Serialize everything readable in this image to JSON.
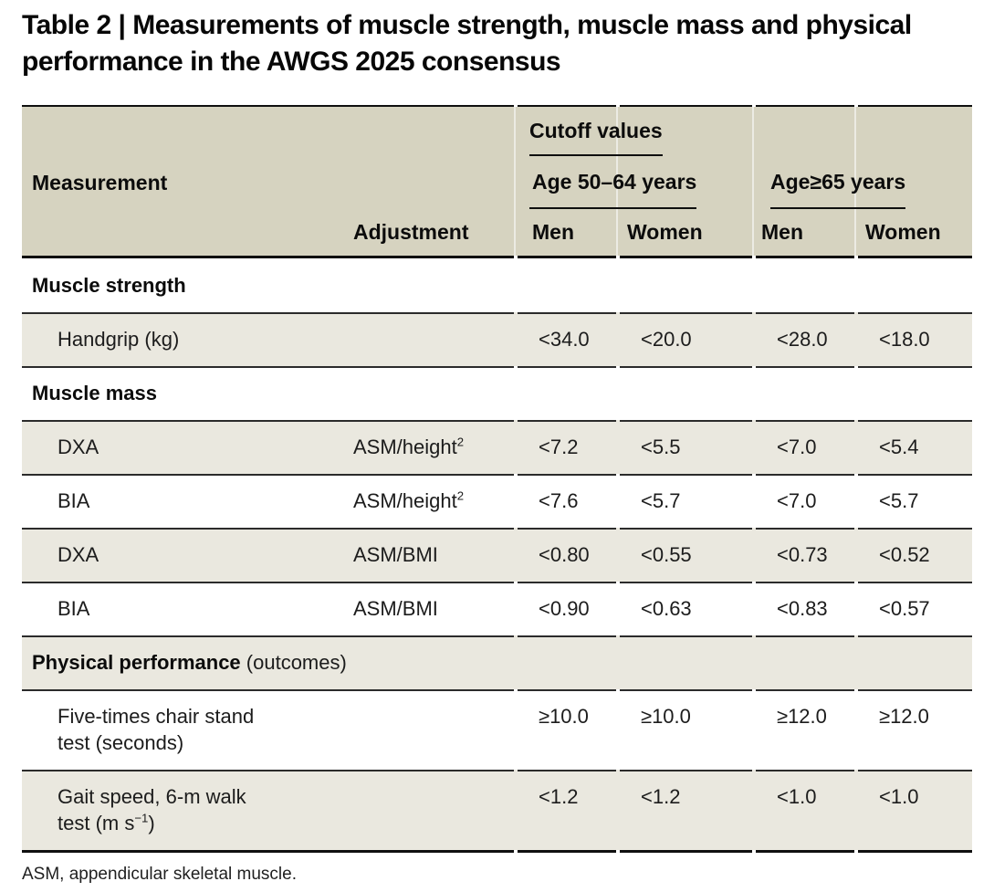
{
  "title": "Table 2 | Measurements of muscle strength, muscle mass and physical performance in the AWGS 2025 consensus",
  "colors": {
    "header_background": "#d6d3c0",
    "stripe_background": "#eae8df",
    "rule_dark": "#0f0f0f",
    "rule_mid": "#2b2b2b"
  },
  "table": {
    "header": {
      "measurement_label": "Measurement",
      "adjustment_label": "Adjustment",
      "cutoff_label": "Cutoff values",
      "group1_label": "Age 50–64 years",
      "group2_label": "Age≥65 years",
      "col_labels": [
        "Men",
        "Women",
        "Men",
        "Women"
      ]
    },
    "rows": [
      {
        "type": "section",
        "title": "Muscle strength",
        "suffix": ""
      },
      {
        "type": "row",
        "measurement": "Handgrip (kg)",
        "adjustment": "",
        "values": [
          "<34.0",
          "<20.0",
          "<28.0",
          "<18.0"
        ]
      },
      {
        "type": "section",
        "title": "Muscle mass",
        "suffix": ""
      },
      {
        "type": "row",
        "measurement": "DXA",
        "adjustment": "ASM/height",
        "adjustment_sup": "2",
        "values": [
          "<7.2",
          "<5.5",
          "<7.0",
          "<5.4"
        ]
      },
      {
        "type": "row",
        "measurement": "BIA",
        "adjustment": "ASM/height",
        "adjustment_sup": "2",
        "values": [
          "<7.6",
          "<5.7",
          "<7.0",
          "<5.7"
        ]
      },
      {
        "type": "row",
        "measurement": "DXA",
        "adjustment": "ASM/BMI",
        "values": [
          "<0.80",
          "<0.55",
          "<0.73",
          "<0.52"
        ]
      },
      {
        "type": "row",
        "measurement": "BIA",
        "adjustment": "ASM/BMI",
        "values": [
          "<0.90",
          "<0.63",
          "<0.83",
          "<0.57"
        ]
      },
      {
        "type": "section",
        "title": "Physical performance",
        "suffix": " (outcomes)"
      },
      {
        "type": "row",
        "measurement": "Five-times chair stand\ntest (seconds)",
        "adjustment": "",
        "values": [
          "≥10.0",
          "≥10.0",
          "≥12.0",
          "≥12.0"
        ]
      },
      {
        "type": "row",
        "measurement": "Gait speed, 6-m walk\ntest (m s",
        "measurement_sup": "−1",
        "measurement_tail": ")",
        "adjustment": "",
        "values": [
          "<1.2",
          "<1.2",
          "<1.0",
          "<1.0"
        ]
      }
    ],
    "footnote": "ASM, appendicular skeletal muscle."
  }
}
